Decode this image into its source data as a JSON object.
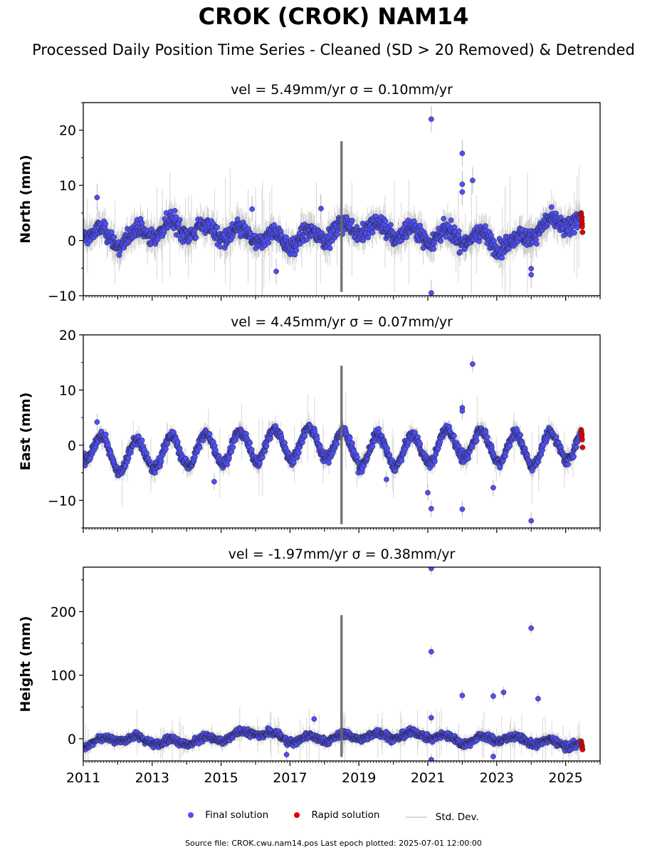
{
  "title": "CROK (CROK) NAM14",
  "subtitle": "Processed Daily Position Time Series - Cleaned (SD > 20 Removed) & Detrended",
  "legend": {
    "final": "Final solution",
    "rapid": "Rapid solution",
    "stddev": "Std. Dev."
  },
  "footer": "Source file: CROK.cwu.nam14.pos  Last epoch plotted: 2025-07-01 12:00:00",
  "colors": {
    "final": "#4f4ff7",
    "rapid": "#e00000",
    "stddev": "#bbbbbb",
    "edge": "#222222"
  },
  "chart_data": [
    {
      "type": "scatter",
      "panel_title": "vel = 5.49mm/yr   σ = 0.10mm/yr",
      "xlabel": "",
      "ylabel": "North (mm)",
      "xlim": [
        2011.0,
        2026.0
      ],
      "ylim": [
        -10,
        25
      ],
      "yticks": [
        -10,
        0,
        10,
        20
      ],
      "xticks": [
        2011,
        2013,
        2015,
        2017,
        2019,
        2021,
        2023,
        2025
      ],
      "show_xtick_labels": false,
      "seasonal_amplitude": 1.2,
      "noise": 1.6,
      "gap": [
        2018.45,
        2018.55
      ],
      "trend_segments": [
        {
          "x": 2011.0,
          "y": 2.0
        },
        {
          "x": 2012.0,
          "y": 0.0
        },
        {
          "x": 2013.5,
          "y": 2.5
        },
        {
          "x": 2015.0,
          "y": 1.5
        },
        {
          "x": 2017.0,
          "y": 0.0
        },
        {
          "x": 2019.0,
          "y": 2.5
        },
        {
          "x": 2021.0,
          "y": 1.0
        },
        {
          "x": 2022.5,
          "y": 0.5
        },
        {
          "x": 2023.5,
          "y": -1.0
        },
        {
          "x": 2024.0,
          "y": 2.0
        },
        {
          "x": 2025.5,
          "y": 4.0
        }
      ],
      "outliers": [
        {
          "x": 2011.4,
          "y": 7.8
        },
        {
          "x": 2021.1,
          "y": 22.0
        },
        {
          "x": 2021.1,
          "y": -9.5
        },
        {
          "x": 2022.0,
          "y": 15.8
        },
        {
          "x": 2022.0,
          "y": 10.2
        },
        {
          "x": 2022.0,
          "y": 8.8
        },
        {
          "x": 2022.3,
          "y": 10.9
        },
        {
          "x": 2024.0,
          "y": -5.1
        },
        {
          "x": 2024.0,
          "y": -6.2
        },
        {
          "x": 2016.6,
          "y": -5.6
        },
        {
          "x": 2017.9,
          "y": 5.8
        },
        {
          "x": 2015.9,
          "y": 5.7
        }
      ],
      "rapid": [
        {
          "x": 2025.45,
          "y": 5.0
        },
        {
          "x": 2025.45,
          "y": 4.6
        },
        {
          "x": 2025.47,
          "y": 4.2
        },
        {
          "x": 2025.47,
          "y": 3.6
        },
        {
          "x": 2025.48,
          "y": 3.0
        },
        {
          "x": 2025.48,
          "y": 2.5
        },
        {
          "x": 2025.49,
          "y": 1.5
        }
      ]
    },
    {
      "type": "scatter",
      "panel_title": "vel = 4.45mm/yr   σ = 0.07mm/yr",
      "xlabel": "",
      "ylabel": "East (mm)",
      "xlim": [
        2011.0,
        2026.0
      ],
      "ylim": [
        -15,
        20
      ],
      "yticks": [
        -10,
        0,
        10,
        20
      ],
      "xticks": [
        2011,
        2013,
        2015,
        2017,
        2019,
        2021,
        2023,
        2025
      ],
      "show_xtick_labels": false,
      "seasonal_amplitude": 2.8,
      "noise": 1.0,
      "gap": [
        2018.45,
        2018.55
      ],
      "trend_segments": [
        {
          "x": 2011.0,
          "y": 0.0
        },
        {
          "x": 2012.0,
          "y": -2.0
        },
        {
          "x": 2014.0,
          "y": -1.0
        },
        {
          "x": 2016.0,
          "y": 0.0
        },
        {
          "x": 2018.0,
          "y": 0.5
        },
        {
          "x": 2019.0,
          "y": -1.0
        },
        {
          "x": 2020.5,
          "y": -1.0
        },
        {
          "x": 2022.0,
          "y": 0.5
        },
        {
          "x": 2024.0,
          "y": -1.0
        },
        {
          "x": 2025.5,
          "y": 0.5
        }
      ],
      "outliers": [
        {
          "x": 2011.4,
          "y": 4.2
        },
        {
          "x": 2021.1,
          "y": -11.5
        },
        {
          "x": 2022.0,
          "y": -11.6
        },
        {
          "x": 2022.0,
          "y": 6.8
        },
        {
          "x": 2022.0,
          "y": 6.2
        },
        {
          "x": 2022.3,
          "y": 14.7
        },
        {
          "x": 2024.0,
          "y": -13.7
        },
        {
          "x": 2022.9,
          "y": -7.7
        },
        {
          "x": 2019.8,
          "y": -6.2
        },
        {
          "x": 2014.8,
          "y": -6.6
        },
        {
          "x": 2021.0,
          "y": -8.6
        }
      ],
      "rapid": [
        {
          "x": 2025.45,
          "y": 2.8
        },
        {
          "x": 2025.46,
          "y": 2.4
        },
        {
          "x": 2025.47,
          "y": 2.0
        },
        {
          "x": 2025.47,
          "y": 1.6
        },
        {
          "x": 2025.48,
          "y": 1.0
        },
        {
          "x": 2025.49,
          "y": -0.4
        }
      ]
    },
    {
      "type": "scatter",
      "panel_title": "vel = -1.97mm/yr   σ = 0.38mm/yr",
      "xlabel": "",
      "ylabel": "Height (mm)",
      "xlim": [
        2011.0,
        2026.0
      ],
      "ylim": [
        -35,
        270
      ],
      "yticks": [
        0,
        100,
        200
      ],
      "xticks": [
        2011,
        2013,
        2015,
        2017,
        2019,
        2021,
        2023,
        2025
      ],
      "xtick_labels": [
        "2011",
        "2013",
        "2015",
        "2017",
        "2019",
        "2021",
        "2023",
        "2025"
      ],
      "show_xtick_labels": true,
      "seasonal_amplitude": 5.0,
      "noise": 6.0,
      "gap": [
        2018.45,
        2018.55
      ],
      "trend_segments": [
        {
          "x": 2011.0,
          "y": -8.0
        },
        {
          "x": 2012.0,
          "y": 2.0
        },
        {
          "x": 2013.5,
          "y": -6.0
        },
        {
          "x": 2015.0,
          "y": 0.0
        },
        {
          "x": 2016.0,
          "y": 12.0
        },
        {
          "x": 2017.0,
          "y": -2.0
        },
        {
          "x": 2019.0,
          "y": 4.0
        },
        {
          "x": 2021.0,
          "y": 6.0
        },
        {
          "x": 2022.0,
          "y": -4.0
        },
        {
          "x": 2023.0,
          "y": 2.0
        },
        {
          "x": 2024.0,
          "y": -4.0
        },
        {
          "x": 2025.5,
          "y": -10.0
        }
      ],
      "outliers": [
        {
          "x": 2021.1,
          "y": 268.0
        },
        {
          "x": 2021.1,
          "y": 137.0
        },
        {
          "x": 2021.1,
          "y": 33.0
        },
        {
          "x": 2021.1,
          "y": -33.0
        },
        {
          "x": 2022.0,
          "y": 68.0
        },
        {
          "x": 2022.9,
          "y": 67.0
        },
        {
          "x": 2023.2,
          "y": 73.0
        },
        {
          "x": 2024.0,
          "y": 174.0
        },
        {
          "x": 2024.2,
          "y": 63.0
        },
        {
          "x": 2017.7,
          "y": 31.0
        },
        {
          "x": 2022.9,
          "y": -28.0
        },
        {
          "x": 2016.9,
          "y": -25.0
        }
      ],
      "rapid": [
        {
          "x": 2025.45,
          "y": -4.0
        },
        {
          "x": 2025.46,
          "y": -7.0
        },
        {
          "x": 2025.47,
          "y": -10.0
        },
        {
          "x": 2025.48,
          "y": -12.0
        },
        {
          "x": 2025.48,
          "y": -15.0
        },
        {
          "x": 2025.49,
          "y": -17.0
        }
      ]
    }
  ]
}
